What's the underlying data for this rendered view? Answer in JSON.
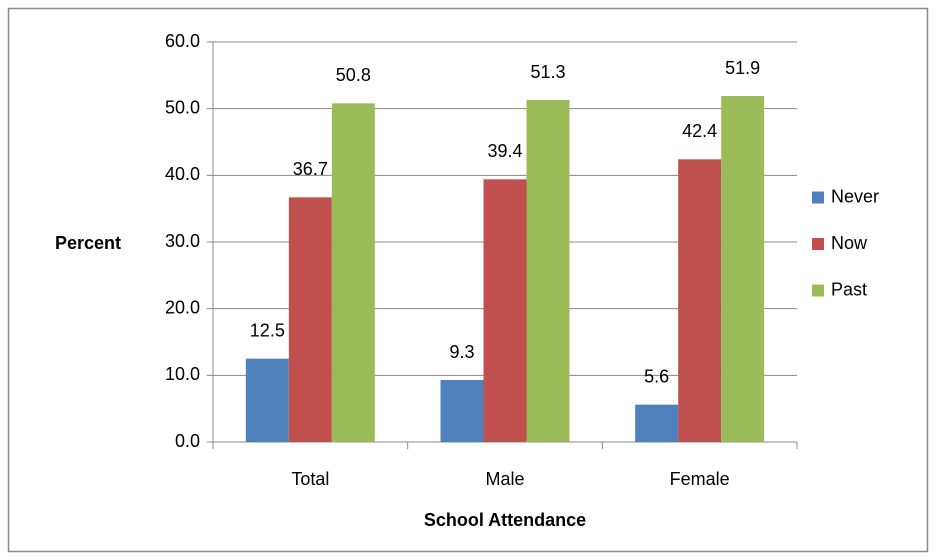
{
  "chart_data": {
    "type": "bar",
    "y_axis_label": "Percent",
    "x_axis_label": "School Attendance",
    "categories": [
      "Total",
      "Male",
      "Female"
    ],
    "series": [
      {
        "name": "Never",
        "color": "#4f81bd",
        "values": [
          12.5,
          9.3,
          5.6
        ]
      },
      {
        "name": "Now",
        "color": "#c0504d",
        "values": [
          36.7,
          39.4,
          42.4
        ]
      },
      {
        "name": "Past",
        "color": "#9bbb59",
        "values": [
          50.8,
          51.3,
          51.9
        ]
      }
    ],
    "ylim": [
      0,
      60
    ],
    "yticks": [
      {
        "value": 0,
        "label": "0.0"
      },
      {
        "value": 10,
        "label": "10.0"
      },
      {
        "value": 20,
        "label": "20.0"
      },
      {
        "value": 30,
        "label": "30.0"
      },
      {
        "value": 40,
        "label": "40.0"
      },
      {
        "value": 50,
        "label": "50.0"
      },
      {
        "value": 60,
        "label": "60.0"
      }
    ],
    "grid": true,
    "legend": "right"
  }
}
